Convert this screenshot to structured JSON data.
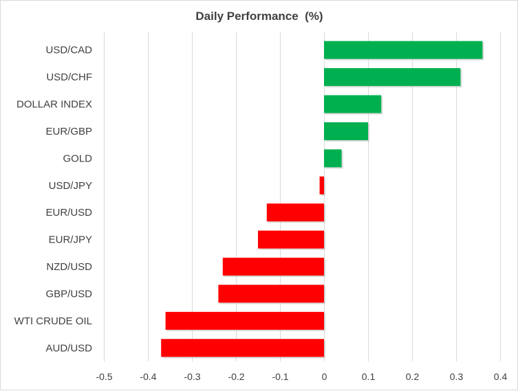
{
  "chart_data": {
    "type": "bar",
    "orientation": "horizontal",
    "title": "Daily Performance  (%)",
    "xlabel": "",
    "ylabel": "",
    "xlim": [
      -0.5,
      0.4
    ],
    "x_ticks": [
      "-0.5",
      "-0.4",
      "-0.3",
      "-0.2",
      "-0.1",
      "0",
      "0.1",
      "0.2",
      "0.3",
      "0.4"
    ],
    "x_tick_values": [
      -0.5,
      -0.4,
      -0.3,
      -0.2,
      -0.1,
      0,
      0.1,
      0.2,
      0.3,
      0.4
    ],
    "grid": "vertical",
    "legend": "none",
    "categories": [
      "USD/CAD",
      "USD/CHF",
      "DOLLAR INDEX",
      "EUR/GBP",
      "GOLD",
      "USD/JPY",
      "EUR/USD",
      "EUR/JPY",
      "NZD/USD",
      "GBP/USD",
      "WTI CRUDE OIL",
      "AUD/USD"
    ],
    "values": [
      0.36,
      0.31,
      0.13,
      0.1,
      0.04,
      -0.01,
      -0.13,
      -0.15,
      -0.23,
      -0.24,
      -0.36,
      -0.37
    ],
    "colors": {
      "positive": "#00b050",
      "negative": "#ff0000"
    }
  }
}
